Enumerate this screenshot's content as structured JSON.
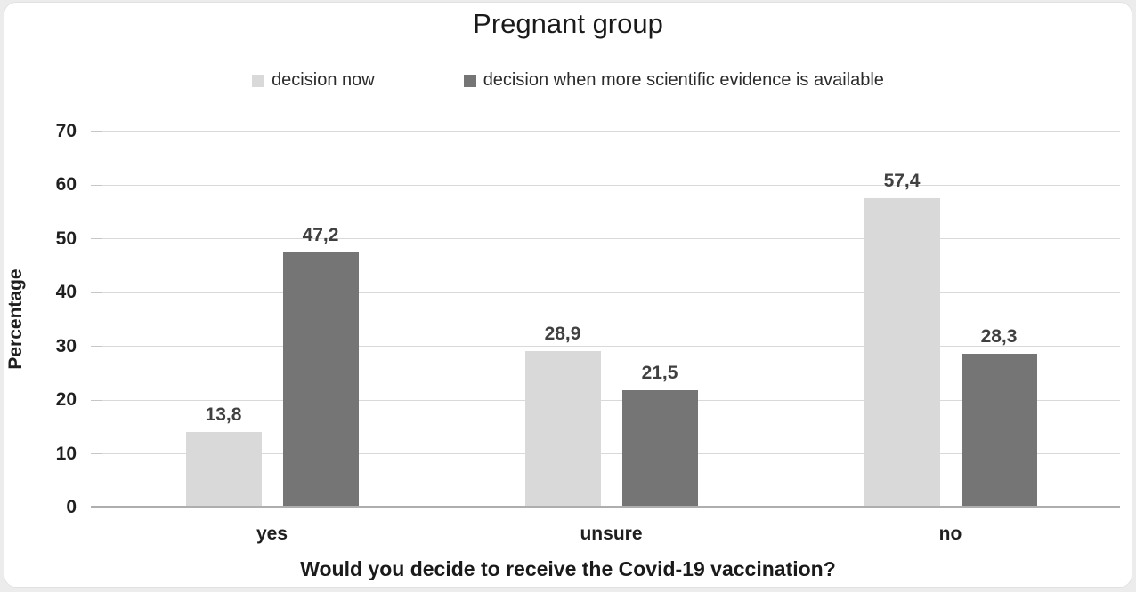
{
  "title": "Pregnant group",
  "legend": {
    "items": [
      {
        "label": "decision now"
      },
      {
        "label": "decision when more scientific evidence is available"
      }
    ]
  },
  "colors": {
    "series_light": "#d9d9d9",
    "series_dark": "#757575",
    "gridline": "#d9d9d9",
    "axis_line": "#aeaeae"
  },
  "chart_data": {
    "type": "bar",
    "title": "Pregnant group",
    "categories": [
      "yes",
      "unsure",
      "no"
    ],
    "series": [
      {
        "name": "decision now",
        "color": "#d9d9d9",
        "values": [
          13.8,
          28.9,
          57.4
        ],
        "value_labels": [
          "13,8",
          "28,9",
          "57,4"
        ]
      },
      {
        "name": "decision when more scientific evidence is available",
        "color": "#757575",
        "values": [
          47.2,
          21.5,
          28.3
        ],
        "value_labels": [
          "47,2",
          "21,5",
          "28,3"
        ]
      }
    ],
    "xlabel": "Would you decide to receive the Covid-19 vaccination?",
    "ylabel": "Percentage",
    "ylim": [
      0,
      70
    ],
    "yticks": [
      0,
      10,
      20,
      30,
      40,
      50,
      60,
      70
    ],
    "grid": true,
    "legend_position": "top",
    "decimal_separator": ","
  }
}
